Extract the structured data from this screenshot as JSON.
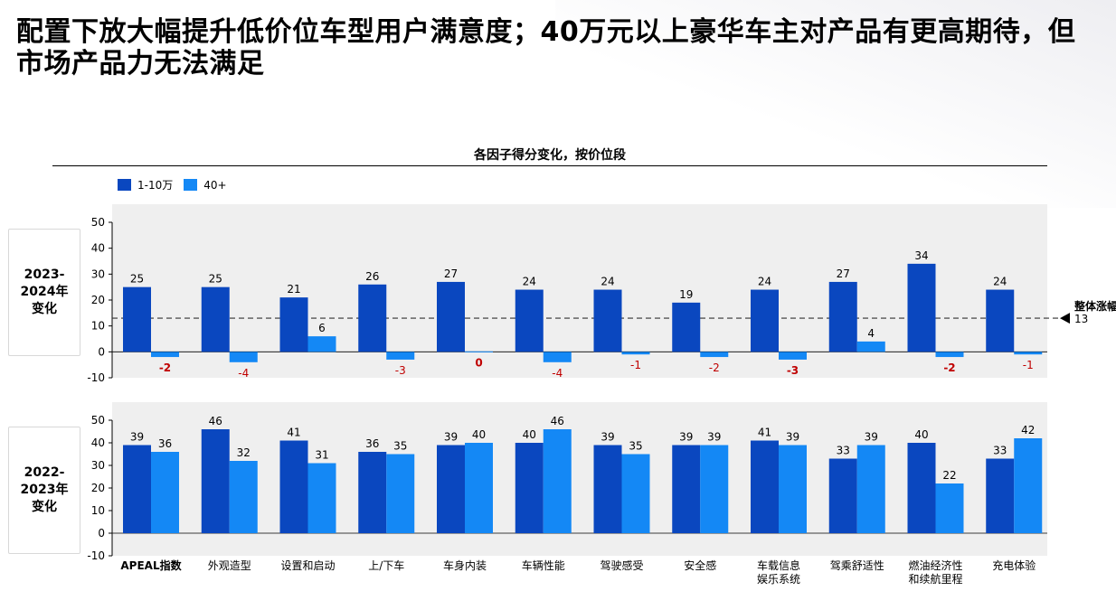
{
  "headline": "配置下放大幅提升低价位车型用户满意度；40万元以上豪华车主对产品有更高期待，但市场产品力无法满足",
  "chart_title": "各因子得分变化，按价位段",
  "colors": {
    "dark": "#0a47bf",
    "light": "#1488f5",
    "negative": "#c00000",
    "panel": "#efefef"
  },
  "row_labels": {
    "top": "2023-2024年变化",
    "bottom": "2022-2023年变化"
  },
  "chart_data": [
    {
      "type": "bar",
      "panel": "2023-2024年变化",
      "categories": [
        "APEAL指数",
        "外观造型",
        "设置和启动",
        "上/下车",
        "车身内装",
        "车辆性能",
        "驾驶感受",
        "安全感",
        "车载信息娱乐系统",
        "驾乘舒适性",
        "燃油经济性和续航里程",
        "充电体验"
      ],
      "category_lines": [
        [
          "APEAL指数"
        ],
        [
          "外观造型"
        ],
        [
          "设置和启动"
        ],
        [
          "上/下车"
        ],
        [
          "车身内装"
        ],
        [
          "车辆性能"
        ],
        [
          "驾驶感受"
        ],
        [
          "安全感"
        ],
        [
          "车载信息",
          "娱乐系统"
        ],
        [
          "驾乘舒适性"
        ],
        [
          "燃油经济性",
          "和续航里程"
        ],
        [
          "充电体验"
        ]
      ],
      "series": [
        {
          "name": "1-10万",
          "values": [
            25,
            25,
            21,
            26,
            27,
            24,
            24,
            19,
            24,
            27,
            34,
            24
          ]
        },
        {
          "name": "40+",
          "values": [
            -2,
            -4,
            6,
            -3,
            0,
            -4,
            -1,
            -2,
            -3,
            4,
            -2,
            -1
          ]
        }
      ],
      "yticks": [
        50,
        40,
        30,
        20,
        10,
        0,
        -10
      ],
      "ylim": [
        -10,
        50
      ],
      "reference_line": {
        "value": 13,
        "label": "整体涨幅",
        "value_label": "13"
      }
    },
    {
      "type": "bar",
      "panel": "2022-2023年变化",
      "categories": [
        "APEAL指数",
        "外观造型",
        "设置和启动",
        "上/下车",
        "车身内装",
        "车辆性能",
        "驾驶感受",
        "安全感",
        "车载信息娱乐系统",
        "驾乘舒适性",
        "燃油经济性和续航里程",
        "充电体验"
      ],
      "series": [
        {
          "name": "1-10万",
          "values": [
            39,
            46,
            41,
            36,
            39,
            40,
            39,
            39,
            41,
            33,
            40,
            33
          ]
        },
        {
          "name": "40+",
          "values": [
            36,
            32,
            31,
            35,
            40,
            46,
            35,
            39,
            39,
            39,
            22,
            42
          ]
        }
      ],
      "yticks": [
        50,
        40,
        30,
        20,
        10,
        0,
        -10
      ],
      "ylim": [
        -10,
        50
      ]
    }
  ]
}
